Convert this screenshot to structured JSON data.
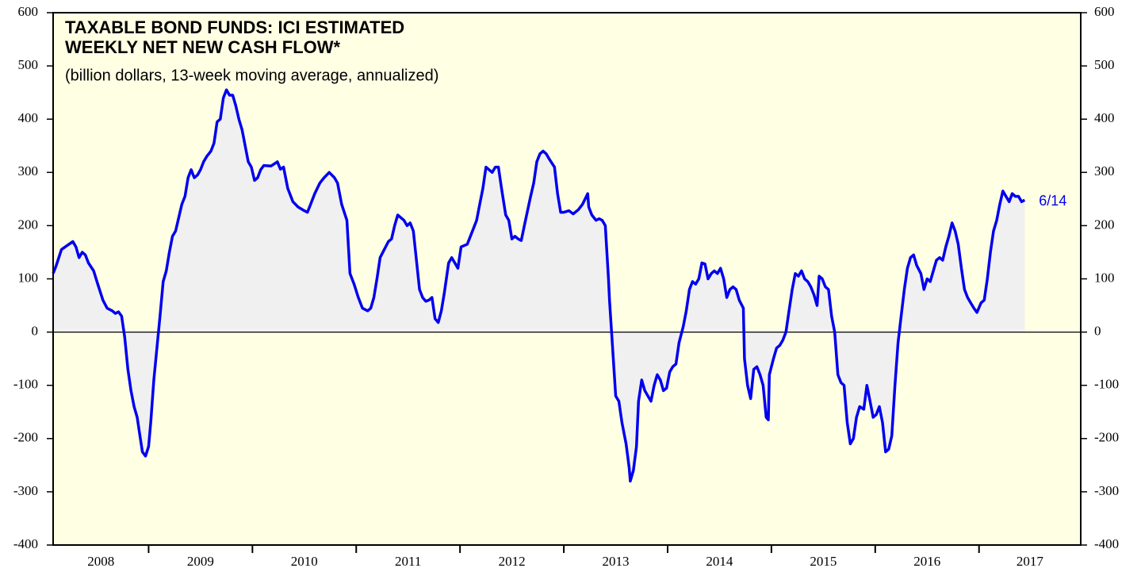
{
  "chart_data": {
    "type": "line",
    "title": [
      "TAXABLE BOND FUNDS: ICI ESTIMATED",
      "WEEKLY NET NEW CASH FLOW*"
    ],
    "subtitle": "(billion dollars, 13-week moving average, annualized)",
    "annotation": "6/14",
    "xlim": [
      2008.08,
      2017.98
    ],
    "xticks": [
      2009,
      2010,
      2011,
      2012,
      2013,
      2014,
      2015,
      2016,
      2017
    ],
    "year_labels": [
      "2008",
      "2009",
      "2010",
      "2011",
      "2012",
      "2013",
      "2014",
      "2015",
      "2016",
      "2017"
    ],
    "ylim": [
      -400,
      600
    ],
    "yticks": [
      -400,
      -300,
      -200,
      -100,
      0,
      100,
      200,
      300,
      400,
      500,
      600
    ],
    "background": "#ffffe4",
    "area_color": "#f0f0f0",
    "series": [
      {
        "name": "Net new cash flow",
        "color": "#0000ee",
        "x": [
          2008.08,
          2008.11,
          2008.16,
          2008.21,
          2008.27,
          2008.3,
          2008.33,
          2008.36,
          2008.39,
          2008.42,
          2008.47,
          2008.51,
          2008.56,
          2008.6,
          2008.65,
          2008.68,
          2008.71,
          2008.74,
          2008.77,
          2008.8,
          2008.83,
          2008.86,
          2008.89,
          2008.92,
          2008.94,
          2008.97,
          2009.0,
          2009.02,
          2009.05,
          2009.08,
          2009.11,
          2009.14,
          2009.17,
          2009.2,
          2009.23,
          2009.26,
          2009.29,
          2009.32,
          2009.35,
          2009.38,
          2009.41,
          2009.44,
          2009.47,
          2009.5,
          2009.53,
          2009.56,
          2009.6,
          2009.63,
          2009.66,
          2009.69,
          2009.72,
          2009.75,
          2009.78,
          2009.81,
          2009.84,
          2009.87,
          2009.9,
          2009.93,
          2009.96,
          2009.99,
          2010.02,
          2010.05,
          2010.08,
          2010.11,
          2010.18,
          2010.24,
          2010.27,
          2010.3,
          2010.34,
          2010.39,
          2010.44,
          2010.5,
          2010.53,
          2010.56,
          2010.6,
          2010.65,
          2010.69,
          2010.74,
          2010.79,
          2010.82,
          2010.86,
          2010.91,
          2010.94,
          2010.98,
          2011.02,
          2011.06,
          2011.11,
          2011.14,
          2011.17,
          2011.2,
          2011.23,
          2011.27,
          2011.31,
          2011.34,
          2011.37,
          2011.4,
          2011.43,
          2011.46,
          2011.49,
          2011.52,
          2011.55,
          2011.58,
          2011.61,
          2011.64,
          2011.67,
          2011.7,
          2011.73,
          2011.76,
          2011.79,
          2011.82,
          2011.85,
          2011.89,
          2011.92,
          2011.95,
          2011.98,
          2012.01,
          2012.07,
          2012.13,
          2012.16,
          2012.19,
          2012.22,
          2012.25,
          2012.28,
          2012.31,
          2012.34,
          2012.37,
          2012.4,
          2012.44,
          2012.47,
          2012.5,
          2012.53,
          2012.56,
          2012.59,
          2012.62,
          2012.68,
          2012.71,
          2012.74,
          2012.77,
          2012.8,
          2012.83,
          2012.86,
          2012.91,
          2012.94,
          2012.97,
          2013.0,
          2013.05,
          2013.09,
          2013.14,
          2013.18,
          2013.23,
          2013.24,
          2013.27,
          2013.31,
          2013.34,
          2013.37,
          2013.4,
          2013.43,
          2013.44,
          2013.47,
          2013.5,
          2013.53,
          2013.56,
          2013.6,
          2013.63,
          2013.64,
          2013.67,
          2013.7,
          2013.72,
          2013.75,
          2013.78,
          2013.81,
          2013.84,
          2013.87,
          2013.9,
          2013.93,
          2013.96,
          2013.99,
          2014.02,
          2014.05,
          2014.08,
          2014.11,
          2014.15,
          2014.18,
          2014.21,
          2014.24,
          2014.27,
          2014.3,
          2014.33,
          2014.36,
          2014.39,
          2014.42,
          2014.45,
          2014.48,
          2014.51,
          2014.54,
          2014.57,
          2014.6,
          2014.63,
          2014.66,
          2014.69,
          2014.73,
          2014.74,
          2014.77,
          2014.8,
          2014.83,
          2014.86,
          2014.89,
          2014.92,
          2014.95,
          2014.97,
          2014.98,
          2015.02,
          2015.05,
          2015.08,
          2015.11,
          2015.14,
          2015.17,
          2015.2,
          2015.23,
          2015.26,
          2015.29,
          2015.32,
          2015.35,
          2015.38,
          2015.41,
          2015.44,
          2015.46,
          2015.49,
          2015.52,
          2015.55,
          2015.58,
          2015.61,
          2015.64,
          2015.67,
          2015.7,
          2015.73,
          2015.76,
          2015.79,
          2015.82,
          2015.85,
          2015.89,
          2015.92,
          2015.95,
          2015.98,
          2016.01,
          2016.04,
          2016.07,
          2016.1,
          2016.13,
          2016.16,
          2016.19,
          2016.22,
          2016.25,
          2016.28,
          2016.31,
          2016.34,
          2016.37,
          2016.4,
          2016.44,
          2016.47,
          2016.5,
          2016.53,
          2016.56,
          2016.59,
          2016.62,
          2016.65,
          2016.68,
          2016.71,
          2016.74,
          2016.77,
          2016.8,
          2016.83,
          2016.86,
          2016.89,
          2016.92,
          2016.95,
          2016.98,
          2017.02,
          2017.05,
          2017.08,
          2017.11,
          2017.14,
          2017.17,
          2017.2,
          2017.23,
          2017.26,
          2017.29,
          2017.32,
          2017.35,
          2017.38,
          2017.41,
          2017.44
        ],
        "values": [
          110,
          125,
          155,
          162,
          170,
          160,
          140,
          150,
          145,
          130,
          115,
          90,
          60,
          45,
          40,
          35,
          38,
          30,
          -10,
          -70,
          -110,
          -140,
          -160,
          -200,
          -225,
          -233,
          -215,
          -170,
          -90,
          -30,
          30,
          95,
          115,
          150,
          180,
          190,
          215,
          240,
          255,
          290,
          305,
          290,
          295,
          305,
          320,
          330,
          340,
          355,
          395,
          400,
          440,
          455,
          445,
          445,
          425,
          400,
          380,
          350,
          320,
          310,
          285,
          290,
          305,
          313,
          312,
          320,
          306,
          310,
          270,
          245,
          235,
          228,
          225,
          240,
          260,
          280,
          290,
          300,
          290,
          280,
          240,
          210,
          110,
          90,
          65,
          45,
          40,
          45,
          65,
          100,
          140,
          155,
          170,
          175,
          200,
          220,
          215,
          210,
          200,
          205,
          190,
          135,
          80,
          65,
          58,
          60,
          65,
          25,
          18,
          40,
          75,
          130,
          140,
          130,
          120,
          160,
          165,
          195,
          210,
          240,
          270,
          310,
          305,
          300,
          310,
          310,
          270,
          220,
          210,
          175,
          180,
          175,
          172,
          200,
          255,
          280,
          320,
          335,
          340,
          335,
          325,
          310,
          260,
          225,
          225,
          228,
          222,
          230,
          240,
          260,
          235,
          220,
          210,
          213,
          210,
          200,
          100,
          60,
          -30,
          -120,
          -130,
          -170,
          -210,
          -255,
          -280,
          -260,
          -215,
          -130,
          -90,
          -110,
          -120,
          -130,
          -100,
          -80,
          -90,
          -110,
          -105,
          -75,
          -65,
          -60,
          -20,
          10,
          40,
          80,
          95,
          90,
          100,
          130,
          128,
          100,
          110,
          115,
          110,
          120,
          100,
          65,
          80,
          85,
          80,
          60,
          45,
          -50,
          -100,
          -125,
          -70,
          -65,
          -80,
          -100,
          -160,
          -165,
          -80,
          -50,
          -30,
          -25,
          -15,
          0,
          40,
          80,
          110,
          105,
          115,
          100,
          95,
          85,
          70,
          50,
          105,
          100,
          85,
          80,
          30,
          0,
          -80,
          -95,
          -100,
          -170,
          -210,
          -200,
          -160,
          -140,
          -145,
          -100,
          -130,
          -160,
          -155,
          -140,
          -170,
          -225,
          -220,
          -195,
          -100,
          -20,
          30,
          80,
          120,
          140,
          145,
          125,
          110,
          80,
          100,
          95,
          115,
          135,
          140,
          135,
          160,
          180,
          205,
          190,
          165,
          120,
          80,
          65,
          55,
          45,
          37,
          55,
          60,
          100,
          150,
          190,
          210,
          240,
          265,
          255,
          245,
          260,
          255,
          255,
          245,
          248
        ]
      }
    ]
  }
}
